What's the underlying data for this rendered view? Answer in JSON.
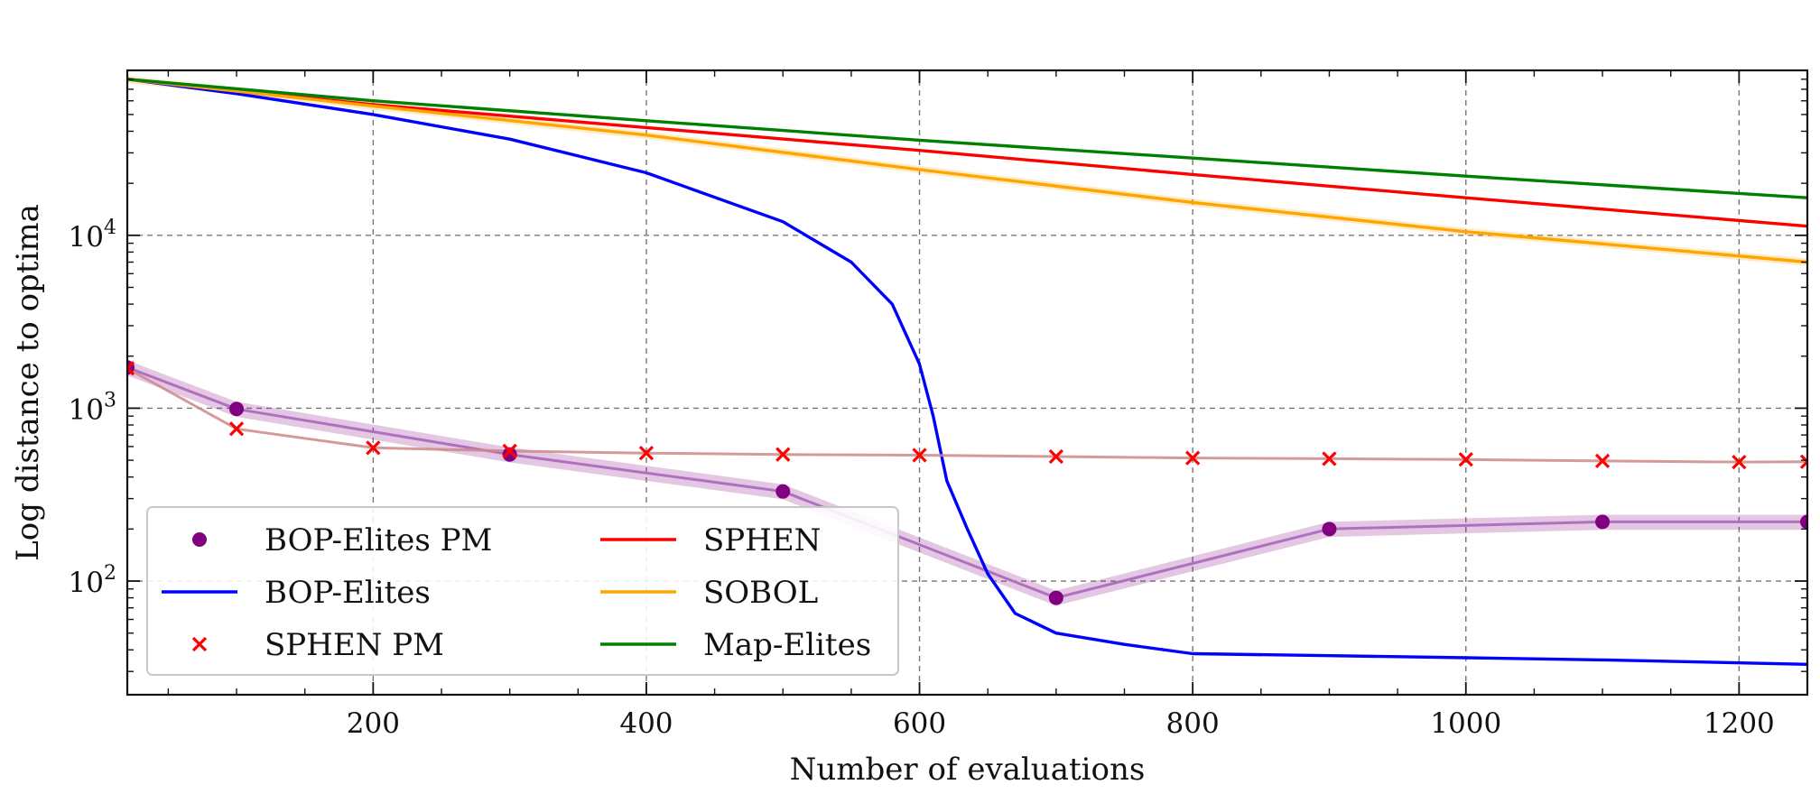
{
  "chart_data": {
    "type": "line",
    "title": "",
    "xlabel": "Number of evaluations",
    "ylabel": "Log distance to optima",
    "xlim": [
      20,
      1250
    ],
    "ylim": [
      22,
      90000
    ],
    "yscale": "log",
    "grid": true,
    "legend_position": "lower-left",
    "legend_columns": 2,
    "x_ticks": [
      {
        "value": 200,
        "label": "200"
      },
      {
        "value": 400,
        "label": "400"
      },
      {
        "value": 600,
        "label": "600"
      },
      {
        "value": 800,
        "label": "800"
      },
      {
        "value": 1000,
        "label": "1000"
      },
      {
        "value": 1200,
        "label": "1200"
      }
    ],
    "y_ticks": [
      {
        "value": 100,
        "base": "10",
        "exp": "2"
      },
      {
        "value": 1000,
        "base": "10",
        "exp": "3"
      },
      {
        "value": 10000,
        "base": "10",
        "exp": "4"
      }
    ],
    "series": [
      {
        "name": "BOP-Elites PM",
        "color": "#800080",
        "style": "line-markers",
        "marker": "circle",
        "band": 0.1,
        "points": [
          [
            20,
            1720
          ],
          [
            100,
            990
          ],
          [
            300,
            540
          ],
          [
            500,
            330
          ],
          [
            700,
            80
          ],
          [
            900,
            200
          ],
          [
            1100,
            220
          ],
          [
            1250,
            220
          ]
        ]
      },
      {
        "name": "BOP-Elites",
        "color": "#0000ff",
        "style": "line",
        "points": [
          [
            20,
            80000
          ],
          [
            100,
            66000
          ],
          [
            200,
            50000
          ],
          [
            300,
            36000
          ],
          [
            400,
            23000
          ],
          [
            500,
            12000
          ],
          [
            550,
            7000
          ],
          [
            580,
            4000
          ],
          [
            600,
            1800
          ],
          [
            610,
            900
          ],
          [
            620,
            380
          ],
          [
            635,
            200
          ],
          [
            650,
            110
          ],
          [
            670,
            65
          ],
          [
            700,
            50
          ],
          [
            750,
            43
          ],
          [
            800,
            38
          ],
          [
            900,
            37
          ],
          [
            1000,
            36
          ],
          [
            1100,
            35
          ],
          [
            1250,
            33
          ]
        ]
      },
      {
        "name": "SPHEN PM",
        "color": "#ff0000",
        "style": "markers",
        "marker": "x",
        "linecolor": "#cc8888",
        "points": [
          [
            20,
            1700
          ],
          [
            100,
            760
          ],
          [
            200,
            590
          ],
          [
            300,
            565
          ],
          [
            400,
            550
          ],
          [
            500,
            540
          ],
          [
            600,
            535
          ],
          [
            700,
            525
          ],
          [
            800,
            515
          ],
          [
            900,
            510
          ],
          [
            1000,
            505
          ],
          [
            1100,
            495
          ],
          [
            1200,
            488
          ],
          [
            1250,
            490
          ]
        ]
      },
      {
        "name": "SPHEN",
        "color": "#ff0000",
        "style": "line",
        "points": [
          [
            20,
            80000
          ],
          [
            200,
            57000
          ],
          [
            400,
            42000
          ],
          [
            600,
            31000
          ],
          [
            800,
            22500
          ],
          [
            1000,
            16500
          ],
          [
            1250,
            11300
          ]
        ]
      },
      {
        "name": "SOBOL",
        "color": "#ffa500",
        "style": "line",
        "band": 0.05,
        "points": [
          [
            20,
            80000
          ],
          [
            200,
            56000
          ],
          [
            400,
            38000
          ],
          [
            600,
            24000
          ],
          [
            800,
            15500
          ],
          [
            1000,
            10500
          ],
          [
            1250,
            7000
          ]
        ]
      },
      {
        "name": "Map-Elites",
        "color": "#008000",
        "style": "line",
        "points": [
          [
            20,
            80000
          ],
          [
            200,
            60000
          ],
          [
            400,
            46000
          ],
          [
            600,
            35500
          ],
          [
            800,
            28000
          ],
          [
            1000,
            22000
          ],
          [
            1250,
            16500
          ]
        ]
      }
    ],
    "legend_order": [
      "BOP-Elites PM",
      "BOP-Elites",
      "SPHEN PM",
      "SPHEN",
      "SOBOL",
      "Map-Elites"
    ]
  }
}
